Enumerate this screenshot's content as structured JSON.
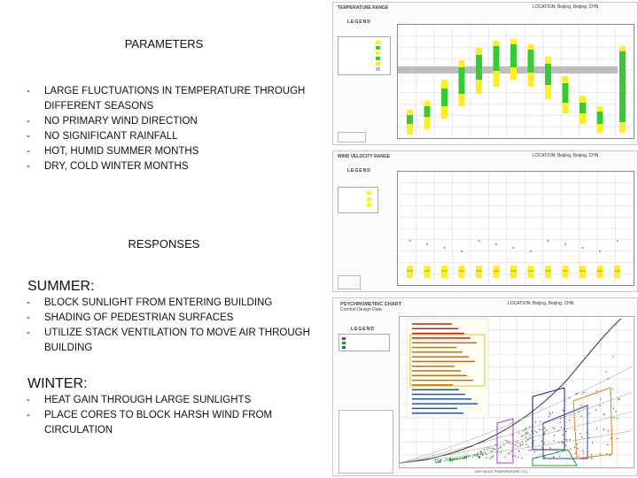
{
  "parameters": {
    "heading": "PARAMETERS",
    "items": [
      "LARGE FLUCTUATIONS IN TEMPERATURE THROUGH DIFFERENT SEASONS",
      "NO PRIMARY WIND DIRECTION",
      "NO SIGNIFICANT RAINFALL",
      "HOT, HUMID SUMMER MONTHS",
      "DRY, COLD WINTER MONTHS"
    ]
  },
  "responses": {
    "heading": "RESPONSES",
    "summer": {
      "label": "SUMMER:",
      "items": [
        "BLOCK SUNLIGHT FROM ENTERING BUILDING",
        "SHADING OF PEDESTRIAN SURFACES",
        "UTILIZE STACK VENTILATION TO MOVE AIR THROUGH BUILDING"
      ]
    },
    "winter": {
      "label": "WINTER:",
      "items": [
        "HEAT GAIN THROUGH LARGE SUNLIGHTS",
        "PLACE CORES TO BLOCK HARSH WIND FROM CIRCULATION"
      ]
    }
  },
  "panels": {
    "temperature": {
      "title": "TEMPERATURE RANGE",
      "legend": "LEGEND",
      "location": "LOCATION: Beijing, Beijing, CHN"
    },
    "wind": {
      "title": "WIND VELOCITY RANGE",
      "legend": "LEGEND",
      "location": "LOCATION: Beijing, Beijing, CHN"
    },
    "psychrometric": {
      "title": "PSYCHROMETRIC CHART",
      "subtitle": "Comfort Design Data",
      "legend": "LEGEND",
      "location": "LOCATION: Beijing, Beijing, CHN",
      "xlabel": "DRY BULB TEMPERATURE (°C)"
    }
  },
  "colors": {
    "bar_green": "#33cc33",
    "bar_yellow": "#ffee22",
    "gray_band": "#bdbdbd",
    "grid": "#dddddd"
  }
}
